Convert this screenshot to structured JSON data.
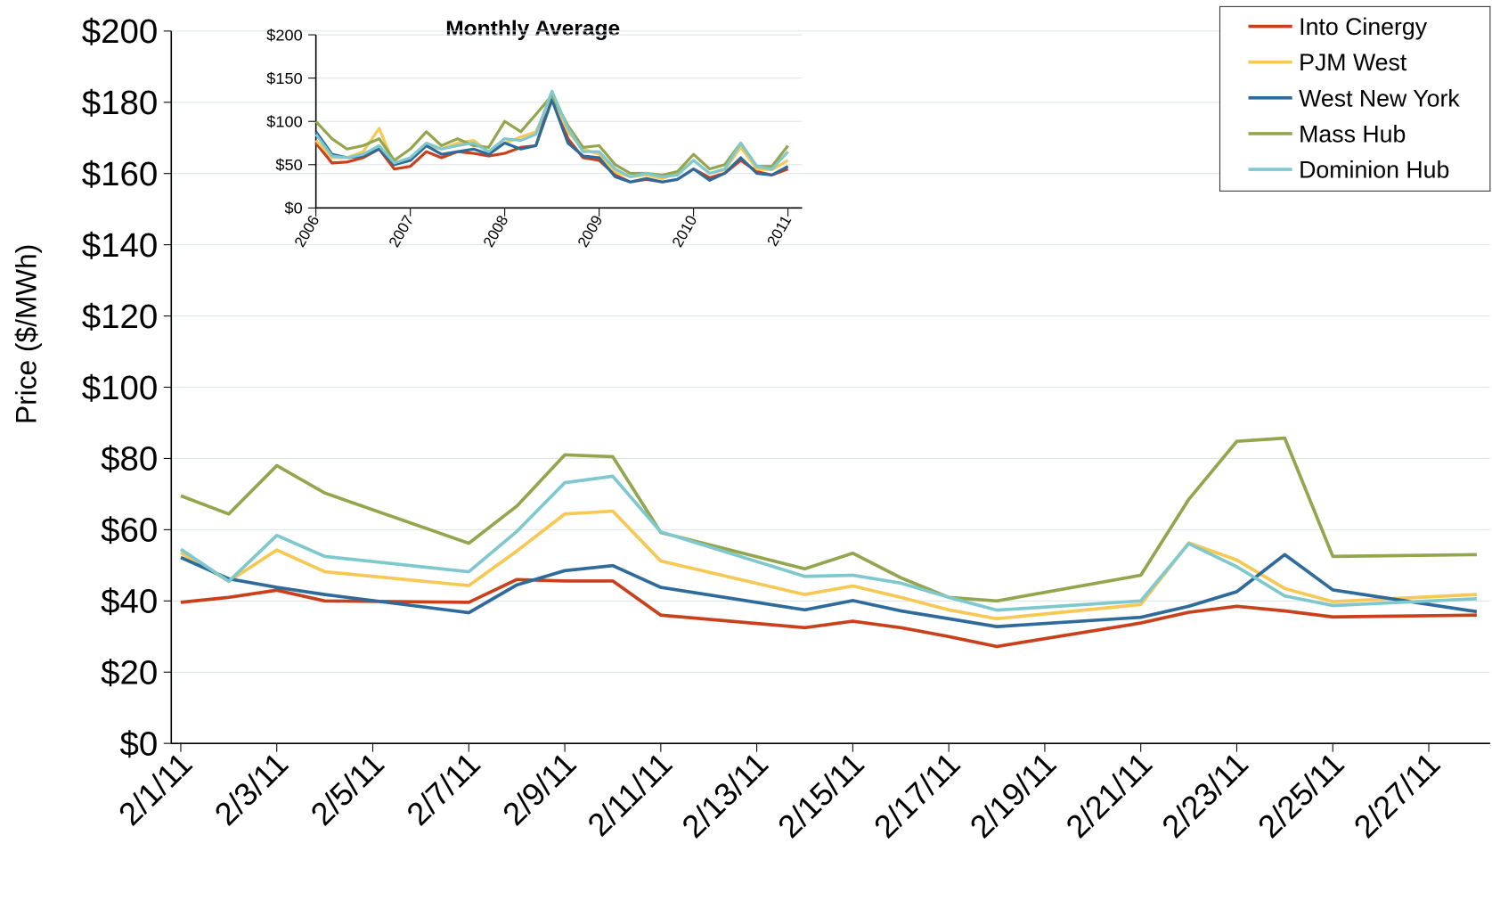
{
  "chart_data": [
    {
      "type": "line",
      "y_label": "Price ($/MWh)",
      "x": [
        "2/1/11",
        "2/2/11",
        "2/3/11",
        "2/4/11",
        "2/7/11",
        "2/8/11",
        "2/9/11",
        "2/10/11",
        "2/11/11",
        "2/14/11",
        "2/15/11",
        "2/16/11",
        "2/17/11",
        "2/18/11",
        "2/21/11",
        "2/22/11",
        "2/23/11",
        "2/24/11",
        "2/25/11",
        "2/28/11"
      ],
      "xlim": [
        "2/1/11",
        "2/28/11"
      ],
      "xticks": [
        "2/1/11",
        "2/3/11",
        "2/5/11",
        "2/7/11",
        "2/9/11",
        "2/11/11",
        "2/13/11",
        "2/15/11",
        "2/17/11",
        "2/19/11",
        "2/21/11",
        "2/23/11",
        "2/25/11",
        "2/27/11"
      ],
      "ylim": [
        0,
        200
      ],
      "yticks": [
        {
          "value": 0,
          "label": "$0"
        },
        {
          "value": 20,
          "label": "$20"
        },
        {
          "value": 40,
          "label": "$40"
        },
        {
          "value": 60,
          "label": "$60"
        },
        {
          "value": 80,
          "label": "$80"
        },
        {
          "value": 100,
          "label": "$100"
        },
        {
          "value": 120,
          "label": "$120"
        },
        {
          "value": 140,
          "label": "$140"
        },
        {
          "value": 160,
          "label": "$160"
        },
        {
          "value": 180,
          "label": "$180"
        },
        {
          "value": 200,
          "label": "$200"
        }
      ],
      "grid": true,
      "legend": "top-right",
      "series": [
        {
          "name": "Into Cinergy",
          "color": "#c8401c",
          "values": [
            39.6,
            41,
            43,
            40,
            39.6,
            46,
            45.6,
            45.6,
            36,
            32.5,
            34.3,
            32.5,
            30,
            27.2,
            33.8,
            36.8,
            38.5,
            37.2,
            35.5,
            36
          ]
        },
        {
          "name": "PJM West",
          "color": "#f6c855",
          "values": [
            53.5,
            45.5,
            54.3,
            48.2,
            44.3,
            54,
            64.4,
            65.2,
            51.2,
            41.8,
            44.2,
            41,
            37.5,
            35,
            39,
            56.3,
            51.5,
            43.5,
            39.8,
            41.8
          ]
        },
        {
          "name": "West New York",
          "color": "#2e6a9a",
          "values": [
            52.2,
            46.2,
            43.8,
            41.8,
            36.7,
            44.5,
            48.5,
            49.9,
            43.8,
            37.5,
            40.1,
            37.2,
            35,
            32.8,
            35.4,
            38.5,
            42.6,
            53,
            43.1,
            37
          ]
        },
        {
          "name": "Mass Hub",
          "color": "#93a64d",
          "values": [
            69.5,
            64.4,
            78,
            70.3,
            56.2,
            66.6,
            81,
            80.5,
            59.2,
            49,
            53.4,
            46.5,
            41,
            40,
            47.2,
            68.5,
            84.8,
            85.7,
            52.5,
            53
          ]
        },
        {
          "name": "Dominion Hub",
          "color": "#7fc8cd",
          "values": [
            54.5,
            45.5,
            58.4,
            52.5,
            48.2,
            59.5,
            73.2,
            75,
            59.4,
            46.9,
            47.2,
            45,
            41,
            37.4,
            40,
            56.1,
            49.6,
            41.4,
            38.7,
            40.6
          ]
        }
      ]
    },
    {
      "type": "line",
      "title": "Monthly Average",
      "x": [
        2006,
        2006.17,
        2006.33,
        2006.5,
        2006.67,
        2006.83,
        2007,
        2007.17,
        2007.33,
        2007.5,
        2007.67,
        2007.83,
        2008,
        2008.17,
        2008.33,
        2008.5,
        2008.67,
        2008.83,
        2009,
        2009.17,
        2009.33,
        2009.5,
        2009.67,
        2009.83,
        2010,
        2010.17,
        2010.33,
        2010.5,
        2010.67,
        2010.83,
        2011
      ],
      "xlim": [
        2006,
        2011.15
      ],
      "xticks": [
        2006,
        2007,
        2008,
        2009,
        2010,
        2011
      ],
      "ylim": [
        0,
        200
      ],
      "yticks": [
        {
          "value": 0,
          "label": "$0"
        },
        {
          "value": 50,
          "label": "$50"
        },
        {
          "value": 100,
          "label": "$100"
        },
        {
          "value": 150,
          "label": "$150"
        },
        {
          "value": 200,
          "label": "$200"
        }
      ],
      "grid": true,
      "series": [
        {
          "name": "Into Cinergy",
          "color": "#c8401c",
          "values": [
            75,
            52,
            53,
            58,
            68,
            45,
            48,
            65,
            58,
            65,
            63,
            60,
            63,
            70,
            72,
            130,
            80,
            58,
            55,
            38,
            30,
            33,
            30,
            33,
            45,
            35,
            40,
            55,
            42,
            38,
            45
          ]
        },
        {
          "name": "PJM West",
          "color": "#f6c855",
          "values": [
            78,
            58,
            58,
            65,
            92,
            50,
            55,
            72,
            68,
            75,
            78,
            65,
            75,
            82,
            88,
            130,
            88,
            68,
            62,
            42,
            36,
            38,
            34,
            40,
            55,
            40,
            44,
            70,
            45,
            44,
            55
          ]
        },
        {
          "name": "West New York",
          "color": "#2e6a9a",
          "values": [
            88,
            62,
            58,
            60,
            68,
            50,
            55,
            72,
            62,
            65,
            68,
            62,
            75,
            68,
            72,
            125,
            75,
            60,
            58,
            36,
            30,
            34,
            30,
            33,
            45,
            32,
            40,
            58,
            40,
            38,
            48
          ]
        },
        {
          "name": "Mass Hub",
          "color": "#93a64d",
          "values": [
            100,
            80,
            68,
            72,
            80,
            55,
            68,
            88,
            72,
            80,
            72,
            70,
            100,
            88,
            108,
            130,
            95,
            70,
            72,
            50,
            40,
            40,
            38,
            42,
            62,
            45,
            50,
            75,
            48,
            48,
            72
          ]
        },
        {
          "name": "Dominion Hub",
          "color": "#7fc8cd",
          "values": [
            85,
            60,
            58,
            62,
            72,
            52,
            58,
            75,
            68,
            72,
            75,
            65,
            80,
            78,
            85,
            135,
            92,
            65,
            65,
            45,
            36,
            40,
            36,
            38,
            55,
            40,
            45,
            75,
            48,
            45,
            65
          ]
        }
      ]
    }
  ]
}
